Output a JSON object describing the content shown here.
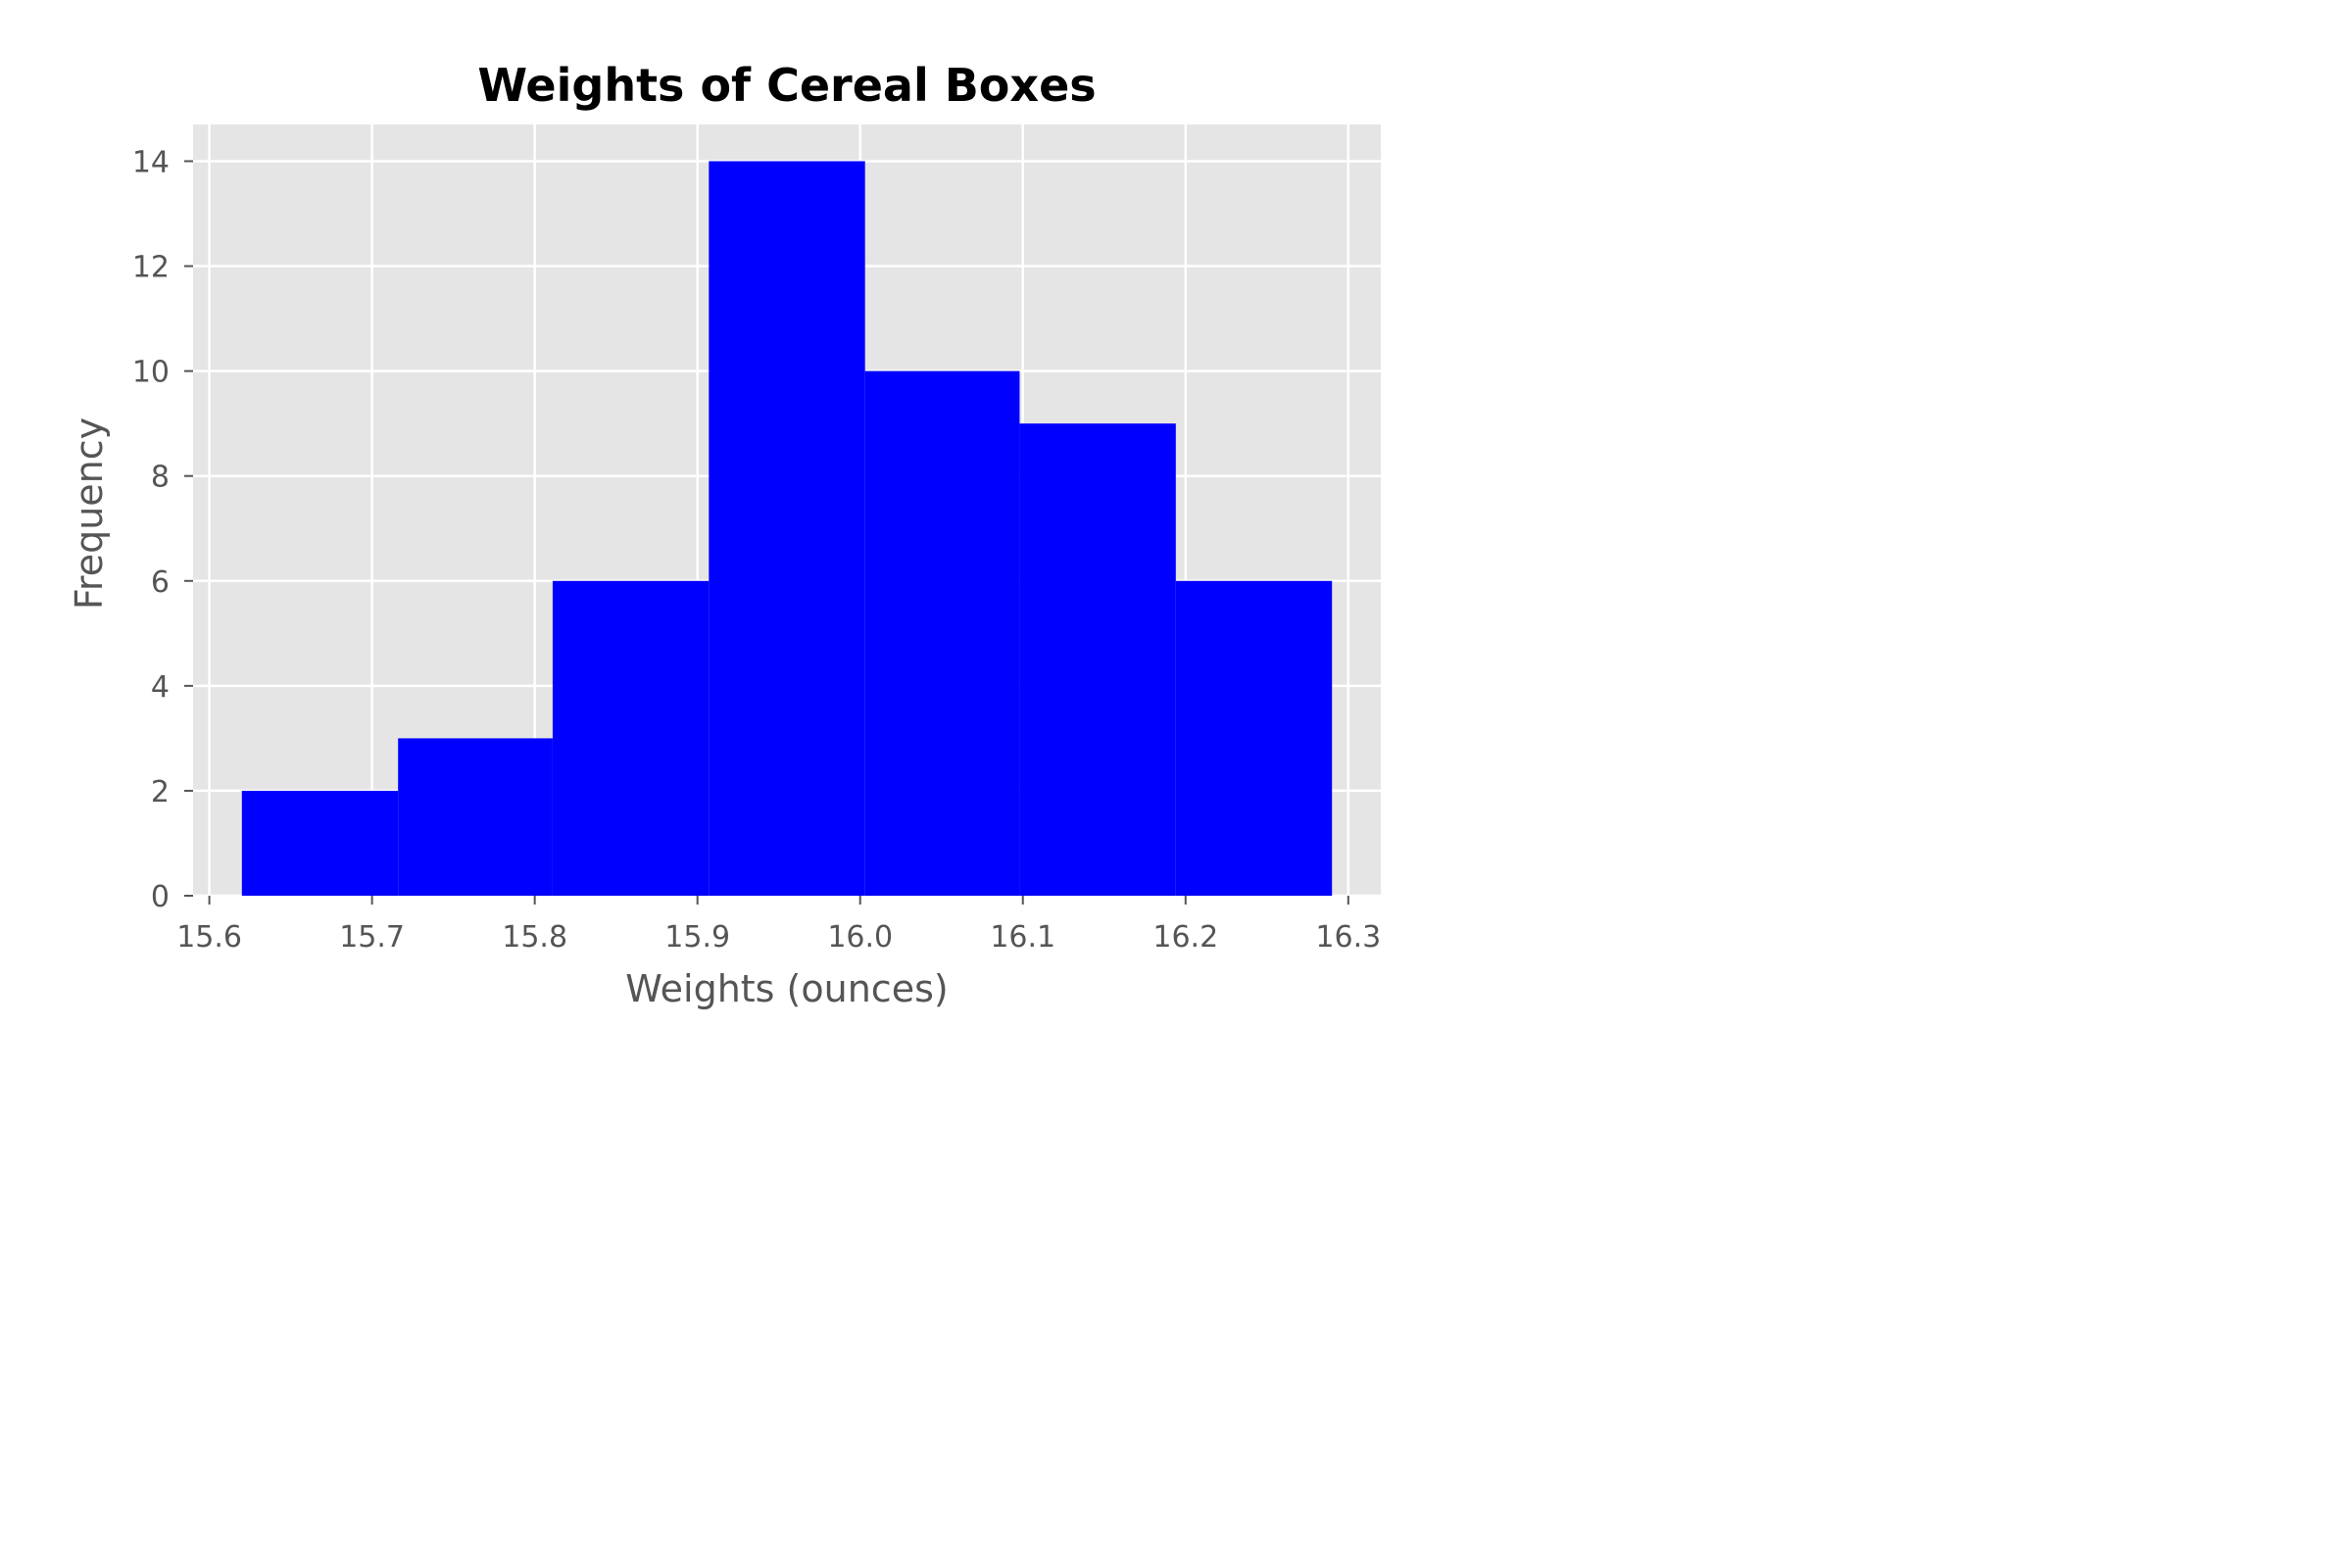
{
  "chart_data": {
    "type": "bar",
    "subtype": "histogram",
    "title": "Weights of Cereal Boxes",
    "xlabel": "Weights (ounces)",
    "ylabel": "Frequency",
    "xlim": [
      15.59,
      16.32
    ],
    "ylim": [
      0,
      14.7
    ],
    "xticks": [
      15.6,
      15.7,
      15.8,
      15.9,
      16.0,
      16.1,
      16.2,
      16.3
    ],
    "xtick_labels": [
      "15.6",
      "15.7",
      "15.8",
      "15.9",
      "16.0",
      "16.1",
      "16.2",
      "16.3"
    ],
    "yticks": [
      0,
      2,
      4,
      6,
      8,
      10,
      12,
      14
    ],
    "ytick_labels": [
      "0",
      "2",
      "4",
      "6",
      "8",
      "10",
      "12",
      "14"
    ],
    "bin_edges": [
      15.62,
      15.716,
      15.811,
      15.907,
      16.003,
      16.098,
      16.194,
      16.29
    ],
    "values": [
      2,
      3,
      6,
      14,
      10,
      9,
      6
    ],
    "grid": true,
    "colors": {
      "bar": "#0000ff",
      "plot_background": "#e5e5e5",
      "grid": "#ffffff",
      "tick": "#555555"
    }
  }
}
